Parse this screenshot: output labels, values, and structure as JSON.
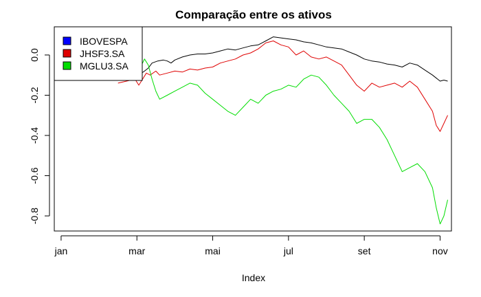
{
  "chart_data": {
    "type": "line",
    "title": "Comparação entre os ativos",
    "xlabel": "Index",
    "ylabel": "",
    "x_ticks": [
      {
        "label": "jan",
        "month": 0
      },
      {
        "label": "mar",
        "month": 2
      },
      {
        "label": "mai",
        "month": 4
      },
      {
        "label": "jul",
        "month": 6
      },
      {
        "label": "set",
        "month": 8
      },
      {
        "label": "nov",
        "month": 10
      }
    ],
    "y_ticks": [
      0.0,
      -0.2,
      -0.4,
      -0.6,
      -0.8
    ],
    "y_tick_labels": [
      "0.0",
      "-0.2",
      "-0.4",
      "-0.6",
      "-0.8"
    ],
    "xlim_month": [
      -0.18,
      10.3
    ],
    "ylim": [
      -0.875,
      0.14
    ],
    "legend_position": "top-left",
    "grid": false,
    "series": [
      {
        "name": "IBOVESPA",
        "color": "#000000",
        "legend_color": "#0000ff",
        "points": [
          [
            1.5,
            -0.12
          ],
          [
            1.95,
            -0.105
          ],
          [
            2.05,
            -0.1
          ],
          [
            2.2,
            -0.08
          ],
          [
            2.3,
            -0.065
          ],
          [
            2.4,
            -0.04
          ],
          [
            2.55,
            -0.03
          ],
          [
            2.7,
            -0.025
          ],
          [
            2.8,
            -0.03
          ],
          [
            2.9,
            -0.04
          ],
          [
            3.0,
            -0.025
          ],
          [
            3.2,
            -0.01
          ],
          [
            3.4,
            0.0
          ],
          [
            3.6,
            0.005
          ],
          [
            3.8,
            0.005
          ],
          [
            4.0,
            0.01
          ],
          [
            4.2,
            0.02
          ],
          [
            4.4,
            0.03
          ],
          [
            4.6,
            0.025
          ],
          [
            4.8,
            0.035
          ],
          [
            5.0,
            0.045
          ],
          [
            5.2,
            0.05
          ],
          [
            5.4,
            0.07
          ],
          [
            5.6,
            0.09
          ],
          [
            5.8,
            0.085
          ],
          [
            6.0,
            0.08
          ],
          [
            6.2,
            0.075
          ],
          [
            6.4,
            0.065
          ],
          [
            6.6,
            0.06
          ],
          [
            6.8,
            0.05
          ],
          [
            7.0,
            0.04
          ],
          [
            7.2,
            0.035
          ],
          [
            7.4,
            0.03
          ],
          [
            7.6,
            0.015
          ],
          [
            7.8,
            0.0
          ],
          [
            8.0,
            -0.02
          ],
          [
            8.2,
            -0.03
          ],
          [
            8.4,
            -0.035
          ],
          [
            8.6,
            -0.045
          ],
          [
            8.8,
            -0.05
          ],
          [
            9.0,
            -0.06
          ],
          [
            9.2,
            -0.04
          ],
          [
            9.4,
            -0.05
          ],
          [
            9.6,
            -0.075
          ],
          [
            9.8,
            -0.1
          ],
          [
            10.0,
            -0.13
          ],
          [
            10.1,
            -0.125
          ],
          [
            10.2,
            -0.13
          ]
        ]
      },
      {
        "name": "JHSF3.SA",
        "color": "#df0000",
        "legend_color": "#df0000",
        "points": [
          [
            1.5,
            -0.14
          ],
          [
            1.95,
            -0.12
          ],
          [
            2.05,
            -0.15
          ],
          [
            2.15,
            -0.12
          ],
          [
            2.25,
            -0.09
          ],
          [
            2.35,
            -0.1
          ],
          [
            2.5,
            -0.08
          ],
          [
            2.6,
            -0.1
          ],
          [
            2.8,
            -0.09
          ],
          [
            3.0,
            -0.08
          ],
          [
            3.2,
            -0.085
          ],
          [
            3.4,
            -0.07
          ],
          [
            3.6,
            -0.075
          ],
          [
            3.8,
            -0.065
          ],
          [
            4.0,
            -0.06
          ],
          [
            4.2,
            -0.04
          ],
          [
            4.4,
            -0.03
          ],
          [
            4.6,
            -0.02
          ],
          [
            4.8,
            0.0
          ],
          [
            5.0,
            0.01
          ],
          [
            5.2,
            0.03
          ],
          [
            5.4,
            0.06
          ],
          [
            5.6,
            0.07
          ],
          [
            5.8,
            0.05
          ],
          [
            6.0,
            0.04
          ],
          [
            6.2,
            0.0
          ],
          [
            6.4,
            0.02
          ],
          [
            6.6,
            -0.01
          ],
          [
            6.8,
            -0.02
          ],
          [
            7.0,
            -0.01
          ],
          [
            7.2,
            -0.03
          ],
          [
            7.4,
            -0.05
          ],
          [
            7.6,
            -0.1
          ],
          [
            7.8,
            -0.15
          ],
          [
            8.0,
            -0.18
          ],
          [
            8.2,
            -0.14
          ],
          [
            8.4,
            -0.16
          ],
          [
            8.6,
            -0.15
          ],
          [
            8.8,
            -0.14
          ],
          [
            9.0,
            -0.16
          ],
          [
            9.2,
            -0.13
          ],
          [
            9.4,
            -0.16
          ],
          [
            9.6,
            -0.22
          ],
          [
            9.8,
            -0.28
          ],
          [
            9.9,
            -0.35
          ],
          [
            10.0,
            -0.38
          ],
          [
            10.1,
            -0.34
          ],
          [
            10.2,
            -0.3
          ]
        ]
      },
      {
        "name": "MGLU3.SA",
        "color": "#00dd00",
        "legend_color": "#00dd00",
        "points": [
          [
            1.5,
            -0.11
          ],
          [
            1.95,
            -0.1
          ],
          [
            2.1,
            -0.06
          ],
          [
            2.2,
            -0.02
          ],
          [
            2.3,
            -0.05
          ],
          [
            2.4,
            -0.12
          ],
          [
            2.5,
            -0.18
          ],
          [
            2.6,
            -0.22
          ],
          [
            2.8,
            -0.2
          ],
          [
            3.0,
            -0.18
          ],
          [
            3.2,
            -0.16
          ],
          [
            3.4,
            -0.14
          ],
          [
            3.6,
            -0.15
          ],
          [
            3.8,
            -0.19
          ],
          [
            4.0,
            -0.22
          ],
          [
            4.2,
            -0.25
          ],
          [
            4.4,
            -0.28
          ],
          [
            4.6,
            -0.3
          ],
          [
            4.8,
            -0.26
          ],
          [
            5.0,
            -0.22
          ],
          [
            5.2,
            -0.24
          ],
          [
            5.4,
            -0.2
          ],
          [
            5.6,
            -0.18
          ],
          [
            5.8,
            -0.17
          ],
          [
            6.0,
            -0.15
          ],
          [
            6.2,
            -0.16
          ],
          [
            6.4,
            -0.12
          ],
          [
            6.6,
            -0.1
          ],
          [
            6.8,
            -0.11
          ],
          [
            7.0,
            -0.15
          ],
          [
            7.2,
            -0.2
          ],
          [
            7.4,
            -0.24
          ],
          [
            7.6,
            -0.28
          ],
          [
            7.8,
            -0.34
          ],
          [
            8.0,
            -0.32
          ],
          [
            8.2,
            -0.32
          ],
          [
            8.4,
            -0.36
          ],
          [
            8.6,
            -0.42
          ],
          [
            8.8,
            -0.5
          ],
          [
            9.0,
            -0.58
          ],
          [
            9.2,
            -0.56
          ],
          [
            9.4,
            -0.54
          ],
          [
            9.6,
            -0.58
          ],
          [
            9.8,
            -0.66
          ],
          [
            9.9,
            -0.76
          ],
          [
            10.0,
            -0.84
          ],
          [
            10.1,
            -0.8
          ],
          [
            10.2,
            -0.72
          ]
        ]
      }
    ]
  }
}
